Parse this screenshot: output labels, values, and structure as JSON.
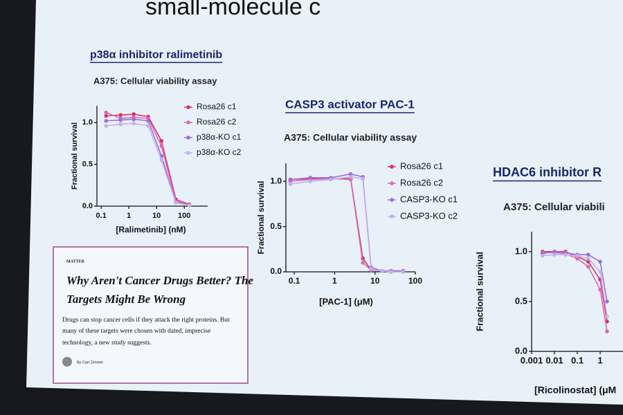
{
  "slide_title": "small-molecule c",
  "article": {
    "section": "MATTER",
    "headline": [
      "Why Aren't Cancer Drugs Better? The",
      "Targets Might Be Wrong"
    ],
    "body": [
      "Drugs can stop cancer cells if they attack the right proteins. But",
      "many of these targets were chosen with dated, imprecise",
      "technology, a new study suggests."
    ],
    "byline": "By Carl Zimmer"
  },
  "chart_data": [
    {
      "type": "line",
      "title": "p38α inhibitor ralimetinib",
      "subtitle": "A375: Cellular viability assay",
      "x_label": "[Ralimetinib] (nM)",
      "y_label": "Fractional survival",
      "log_x": true,
      "xlim": [
        0.07,
        700
      ],
      "xticks": [
        0.1,
        1,
        10,
        100
      ],
      "ylim": [
        0,
        1.2
      ],
      "yticks": [
        {
          "value": 0,
          "label": "0.0"
        },
        0.5,
        {
          "value": 1,
          "label": "1.0"
        }
      ],
      "x": [
        0.15,
        0.5,
        1.5,
        5,
        15,
        50,
        150
      ],
      "series": [
        {
          "name": "Rosa26 c1",
          "color": "#e0305a",
          "values": [
            1.08,
            1.09,
            1.1,
            1.07,
            0.78,
            0.08,
            0.02
          ]
        },
        {
          "name": "Rosa26 c2",
          "color": "#d66ab8",
          "values": [
            1.12,
            1.05,
            1.06,
            1.05,
            0.72,
            0.06,
            0.01
          ]
        },
        {
          "name": "p38α-KO c1",
          "color": "#9a6ee0",
          "values": [
            1.02,
            1.03,
            1.04,
            1.02,
            0.6,
            0.05,
            0.01
          ]
        },
        {
          "name": "p38α-KO c2",
          "color": "#c3b0e8",
          "values": [
            0.96,
            0.98,
            0.99,
            0.96,
            0.55,
            0.04,
            0.01
          ]
        }
      ]
    },
    {
      "type": "line",
      "title": "CASP3 activator PAC-1",
      "subtitle": "A375: Cellular viability assay",
      "x_label": "[PAC-1] (μM)",
      "y_label": "Fractional survival",
      "log_x": true,
      "xlim": [
        0.062,
        100
      ],
      "xticks": [
        0.1,
        1,
        10,
        100
      ],
      "ylim": [
        0,
        1.2
      ],
      "yticks": [
        {
          "value": 0,
          "label": "0.0"
        },
        0.5,
        {
          "value": 1,
          "label": "1.0"
        }
      ],
      "x": [
        0.08,
        0.25,
        0.8,
        2.5,
        5,
        8,
        15,
        25,
        50
      ],
      "series": [
        {
          "name": "Rosa26 c1",
          "color": "#e0305a",
          "values": [
            1.02,
            1.03,
            1.03,
            1.03,
            0.15,
            0.02,
            0.01,
            0.01,
            0.01
          ]
        },
        {
          "name": "Rosa26 c2",
          "color": "#d66ab8",
          "values": [
            1.0,
            1.02,
            1.03,
            1.02,
            0.1,
            0.02,
            0.01,
            0,
            0
          ]
        },
        {
          "name": "CASP3-KO c1",
          "color": "#9a6ee0",
          "values": [
            1.02,
            1.04,
            1.04,
            1.08,
            1.05,
            0.05,
            0.01,
            0.01,
            0.01
          ]
        },
        {
          "name": "CASP3-KO c2",
          "color": "#c3b0e8",
          "values": [
            0.97,
            1.0,
            1.02,
            1.05,
            1.03,
            0.03,
            0.01,
            0,
            0
          ]
        }
      ]
    },
    {
      "type": "line",
      "title": "HDAC6 inhibitor R",
      "subtitle": "A375: Cellular viabili",
      "x_label": "[Ricolinostat] (μM",
      "y_label": "Fractional survival",
      "log_x": true,
      "xlim": [
        0.001,
        10
      ],
      "xticks": [
        0.001,
        0.01,
        0.1,
        1
      ],
      "ylim": [
        0,
        1.2
      ],
      "yticks": [
        {
          "value": 0,
          "label": "0.0"
        },
        0.5,
        {
          "value": 1,
          "label": "1.0"
        }
      ],
      "x": [
        0.003,
        0.01,
        0.03,
        0.1,
        0.3,
        1,
        2
      ],
      "series": [
        {
          "color": "#e0305a",
          "values": [
            1.0,
            1.0,
            1.0,
            0.95,
            0.9,
            0.72,
            0.3
          ]
        },
        {
          "color": "#d66ab8",
          "values": [
            0.99,
            0.99,
            0.98,
            0.93,
            0.85,
            0.62,
            0.2
          ]
        },
        {
          "color": "#9a6ee0",
          "values": [
            0.98,
            1.0,
            0.99,
            0.97,
            0.97,
            0.9,
            0.5
          ]
        },
        {
          "color": "#c3b0e8",
          "values": [
            0.96,
            0.97,
            0.97,
            0.96,
            0.93,
            0.8,
            0.35
          ]
        }
      ]
    }
  ]
}
